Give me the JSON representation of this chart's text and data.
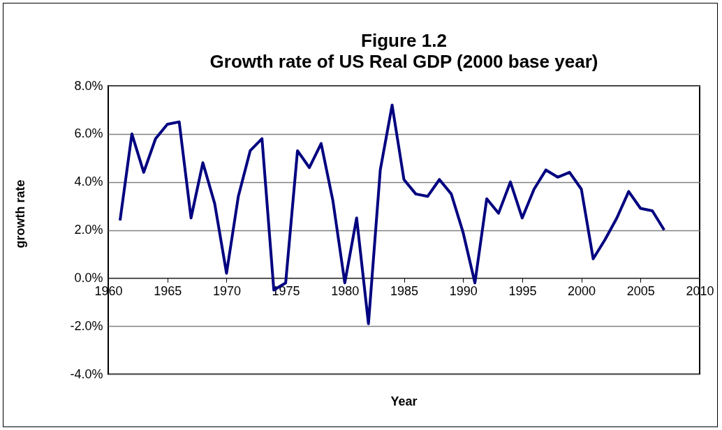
{
  "chart_data": {
    "type": "line",
    "title": "Figure 1.2",
    "subtitle": "Growth rate of US Real GDP (2000 base year)",
    "xlabel": "Year",
    "ylabel": "growth rate",
    "x": [
      1961,
      1962,
      1963,
      1964,
      1965,
      1966,
      1967,
      1968,
      1969,
      1970,
      1971,
      1972,
      1973,
      1974,
      1975,
      1976,
      1977,
      1978,
      1979,
      1980,
      1981,
      1982,
      1983,
      1984,
      1985,
      1986,
      1987,
      1988,
      1989,
      1990,
      1991,
      1992,
      1993,
      1994,
      1995,
      1996,
      1997,
      1998,
      1999,
      2000,
      2001,
      2002,
      2003,
      2004,
      2005,
      2006,
      2007
    ],
    "series": [
      {
        "color": "#000080",
        "values": [
          2.4,
          6.0,
          4.4,
          5.8,
          6.4,
          6.5,
          2.5,
          4.8,
          3.1,
          0.2,
          3.4,
          5.3,
          5.8,
          -0.5,
          -0.2,
          5.3,
          4.6,
          5.6,
          3.2,
          -0.2,
          2.5,
          -1.9,
          4.5,
          7.2,
          4.1,
          3.5,
          3.4,
          4.1,
          3.5,
          1.9,
          -0.2,
          3.3,
          2.7,
          4.0,
          2.5,
          3.7,
          4.5,
          4.2,
          4.4,
          3.7,
          0.8,
          1.6,
          2.5,
          3.6,
          2.9,
          2.8,
          2.0
        ]
      }
    ],
    "xlim": [
      1960,
      2010
    ],
    "xticks": [
      1960,
      1965,
      1970,
      1975,
      1980,
      1985,
      1990,
      1995,
      2000,
      2005,
      2010
    ],
    "ylim": [
      -4,
      8
    ],
    "yticks": [
      {
        "value": -4,
        "label": "-4.0%"
      },
      {
        "value": -2,
        "label": "-2.0%"
      },
      {
        "value": 0,
        "label": "0.0%"
      },
      {
        "value": 2,
        "label": "2.0%"
      },
      {
        "value": 4,
        "label": "4.0%"
      },
      {
        "value": 6,
        "label": "6.0%"
      },
      {
        "value": 8,
        "label": "8.0%"
      }
    ],
    "grid": "y",
    "legend": false,
    "marker": "none",
    "line_style": "solid"
  }
}
